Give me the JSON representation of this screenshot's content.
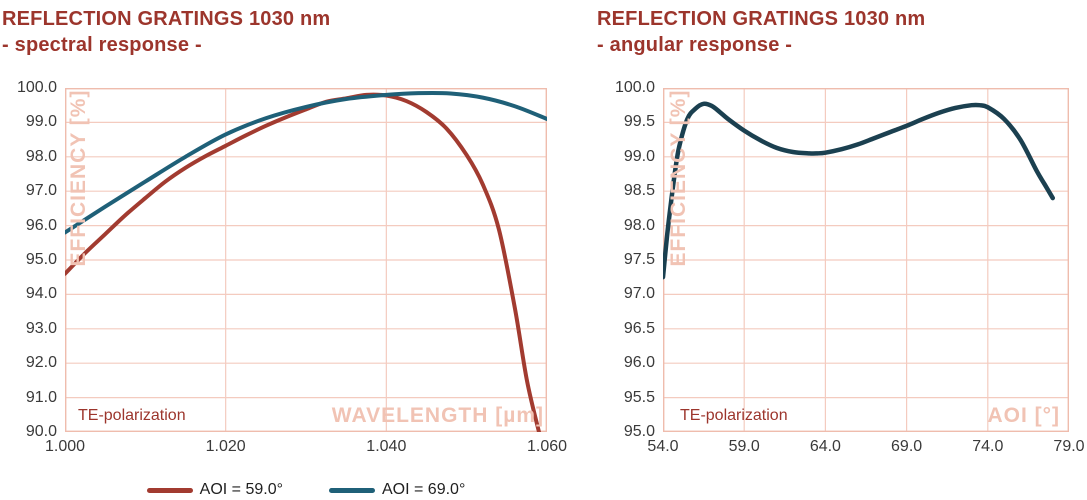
{
  "colors": {
    "background": "#FFFFFF",
    "title_red": "#9C352C",
    "grid_pink": "#F4CBBF",
    "border_pink": "#EFBCAD",
    "axis_label_pink": "#F1C3B4",
    "tick_text": "#3A3A3A",
    "legend_text": "#1F1F1F"
  },
  "chart_data": [
    {
      "type": "line",
      "title": "REFLECTION GRATINGS 1030 nm",
      "subtitle": "- spectral response -",
      "xlabel": "WAVELENGTH [µm]",
      "ylabel": "EFFICIENCY [%]",
      "annotation": "TE-polarization",
      "xlim": [
        1.0,
        1.06
      ],
      "ylim": [
        90.0,
        100.0
      ],
      "x_ticks": [
        "1.000",
        "1.020",
        "1.040",
        "1.060"
      ],
      "y_ticks": [
        "100.0",
        "99.0",
        "98.0",
        "97.0",
        "96.0",
        "95.0",
        "94.0",
        "93.0",
        "92.0",
        "91.0",
        "90.0"
      ],
      "grid": true,
      "legend_position": "bottom",
      "series": [
        {
          "name": "AOI = 59.0°",
          "color": "#A23B30",
          "x": [
            1.0,
            1.0025,
            1.005,
            1.0075,
            1.01,
            1.0125,
            1.015,
            1.0175,
            1.02,
            1.0225,
            1.025,
            1.0275,
            1.03,
            1.0325,
            1.035,
            1.0375,
            1.04,
            1.0425,
            1.045,
            1.0475,
            1.05,
            1.052,
            1.054,
            1.056,
            1.0575,
            1.059
          ],
          "y": [
            94.6,
            95.2,
            95.75,
            96.3,
            96.8,
            97.28,
            97.68,
            98.02,
            98.32,
            98.62,
            98.9,
            99.15,
            99.38,
            99.6,
            99.7,
            99.8,
            99.78,
            99.62,
            99.3,
            98.82,
            98.05,
            97.2,
            95.9,
            93.6,
            91.5,
            90.0
          ]
        },
        {
          "name": "AOI = 69.0°",
          "color": "#1F6078",
          "x": [
            1.0,
            1.005,
            1.01,
            1.015,
            1.02,
            1.025,
            1.03,
            1.035,
            1.04,
            1.044,
            1.048,
            1.052,
            1.056,
            1.06
          ],
          "y": [
            95.8,
            96.55,
            97.28,
            98.0,
            98.65,
            99.12,
            99.45,
            99.68,
            99.8,
            99.85,
            99.84,
            99.72,
            99.47,
            99.1
          ]
        }
      ]
    },
    {
      "type": "line",
      "title": "REFLECTION GRATINGS 1030 nm",
      "subtitle": "- angular response -",
      "xlabel": "AOI [°]",
      "ylabel": "EFFICIENCY [%]",
      "annotation": "TE-polarization",
      "xlim": [
        54.0,
        79.0
      ],
      "ylim": [
        95.0,
        100.0
      ],
      "x_ticks": [
        "54.0",
        "59.0",
        "64.0",
        "69.0",
        "74.0",
        "79.0"
      ],
      "y_ticks": [
        "100.0",
        "99.5",
        "99.0",
        "98.5",
        "98.0",
        "97.5",
        "97.0",
        "96.5",
        "96.0",
        "95.5",
        "95.0"
      ],
      "grid": true,
      "legend_position": "none",
      "series": [
        {
          "name": "",
          "color": "#1B4050",
          "x": [
            54.0,
            54.25,
            54.5,
            54.75,
            55.0,
            55.5,
            56.0,
            56.5,
            57.0,
            57.5,
            58.0,
            59.0,
            60.0,
            61.0,
            62.0,
            63.0,
            63.5,
            64.0,
            65.0,
            66.0,
            67.0,
            68.0,
            69.0,
            70.0,
            71.0,
            72.0,
            73.0,
            73.5,
            74.0,
            75.0,
            76.0,
            77.0,
            77.5,
            78.0
          ],
          "y": [
            97.25,
            97.85,
            98.35,
            98.8,
            99.15,
            99.55,
            99.7,
            99.77,
            99.74,
            99.65,
            99.55,
            99.38,
            99.24,
            99.13,
            99.07,
            99.05,
            99.05,
            99.06,
            99.11,
            99.18,
            99.27,
            99.36,
            99.45,
            99.55,
            99.64,
            99.71,
            99.75,
            99.75,
            99.72,
            99.55,
            99.25,
            98.8,
            98.6,
            98.4
          ]
        }
      ]
    }
  ]
}
